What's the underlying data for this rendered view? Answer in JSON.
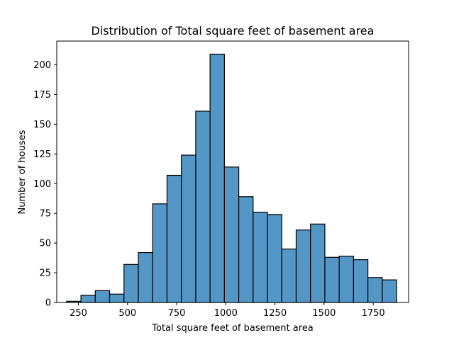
{
  "chart_data": {
    "type": "bar",
    "title": "Distribution of Total square feet of basement area",
    "xlabel": "Total square feet of basement area",
    "ylabel": "Number of houses",
    "xlim": [
      140,
      1930
    ],
    "ylim": [
      0,
      220
    ],
    "xticks": [
      250,
      500,
      750,
      1000,
      1250,
      1500,
      1750
    ],
    "yticks": [
      0,
      25,
      50,
      75,
      100,
      125,
      150,
      175,
      200
    ],
    "bin_edges": [
      190,
      263,
      336,
      409,
      482,
      555,
      628,
      701,
      774,
      847,
      920,
      993,
      1066,
      1139,
      1212,
      1285,
      1358,
      1431,
      1504,
      1577,
      1650,
      1723,
      1796,
      1869
    ],
    "counts": [
      1,
      6,
      10,
      7,
      32,
      42,
      83,
      107,
      124,
      161,
      209,
      114,
      89,
      76,
      74,
      45,
      61,
      66,
      38,
      39,
      36,
      21,
      19
    ],
    "bar_color": "#5497c6",
    "edge_color": "#000000",
    "grid": false
  }
}
